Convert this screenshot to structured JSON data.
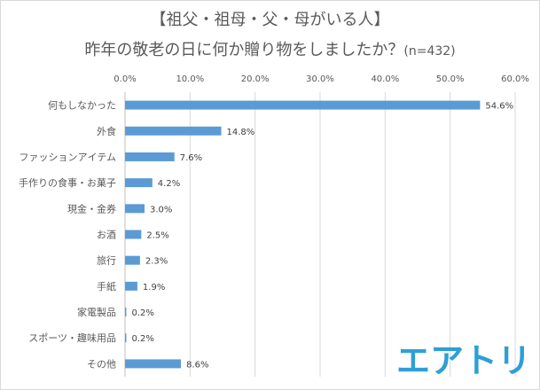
{
  "title": {
    "line1": "【祖父・祖母・父・母がいる人】",
    "line2": "昨年の敬老の日に何か贈り物をしましたか？",
    "n_label": "(n=432)"
  },
  "logo": {
    "text": "エアトリ",
    "color": "#2e9fd6"
  },
  "chart_data": {
    "type": "bar",
    "orientation": "horizontal",
    "title": "【祖父・祖母・父・母がいる人】昨年の敬老の日に何か贈り物をしましたか？(n=432)",
    "categories": [
      "何もしなかった",
      "外食",
      "ファッションアイテム",
      "手作りの食事・お菓子",
      "現金・金券",
      "お酒",
      "旅行",
      "手紙",
      "家電製品",
      "スポーツ・趣味用品",
      "その他"
    ],
    "values": [
      54.6,
      14.8,
      7.6,
      4.2,
      3.0,
      2.5,
      2.3,
      1.9,
      0.2,
      0.2,
      8.6
    ],
    "value_labels": [
      "54.6%",
      "14.8%",
      "7.6%",
      "4.2%",
      "3.0%",
      "2.5%",
      "2.3%",
      "1.9%",
      "0.2%",
      "0.2%",
      "8.6%"
    ],
    "xlim": [
      0,
      60
    ],
    "x_ticks": [
      "0.0%",
      "10.0%",
      "20.0%",
      "30.0%",
      "40.0%",
      "50.0%",
      "60.0%"
    ],
    "x_tick_values": [
      0,
      10,
      20,
      30,
      40,
      50,
      60
    ],
    "axis_position": "top",
    "grid": true,
    "legend": "none",
    "bar_color": "#5b9bd5",
    "grid_color": "#d9d9d9"
  }
}
